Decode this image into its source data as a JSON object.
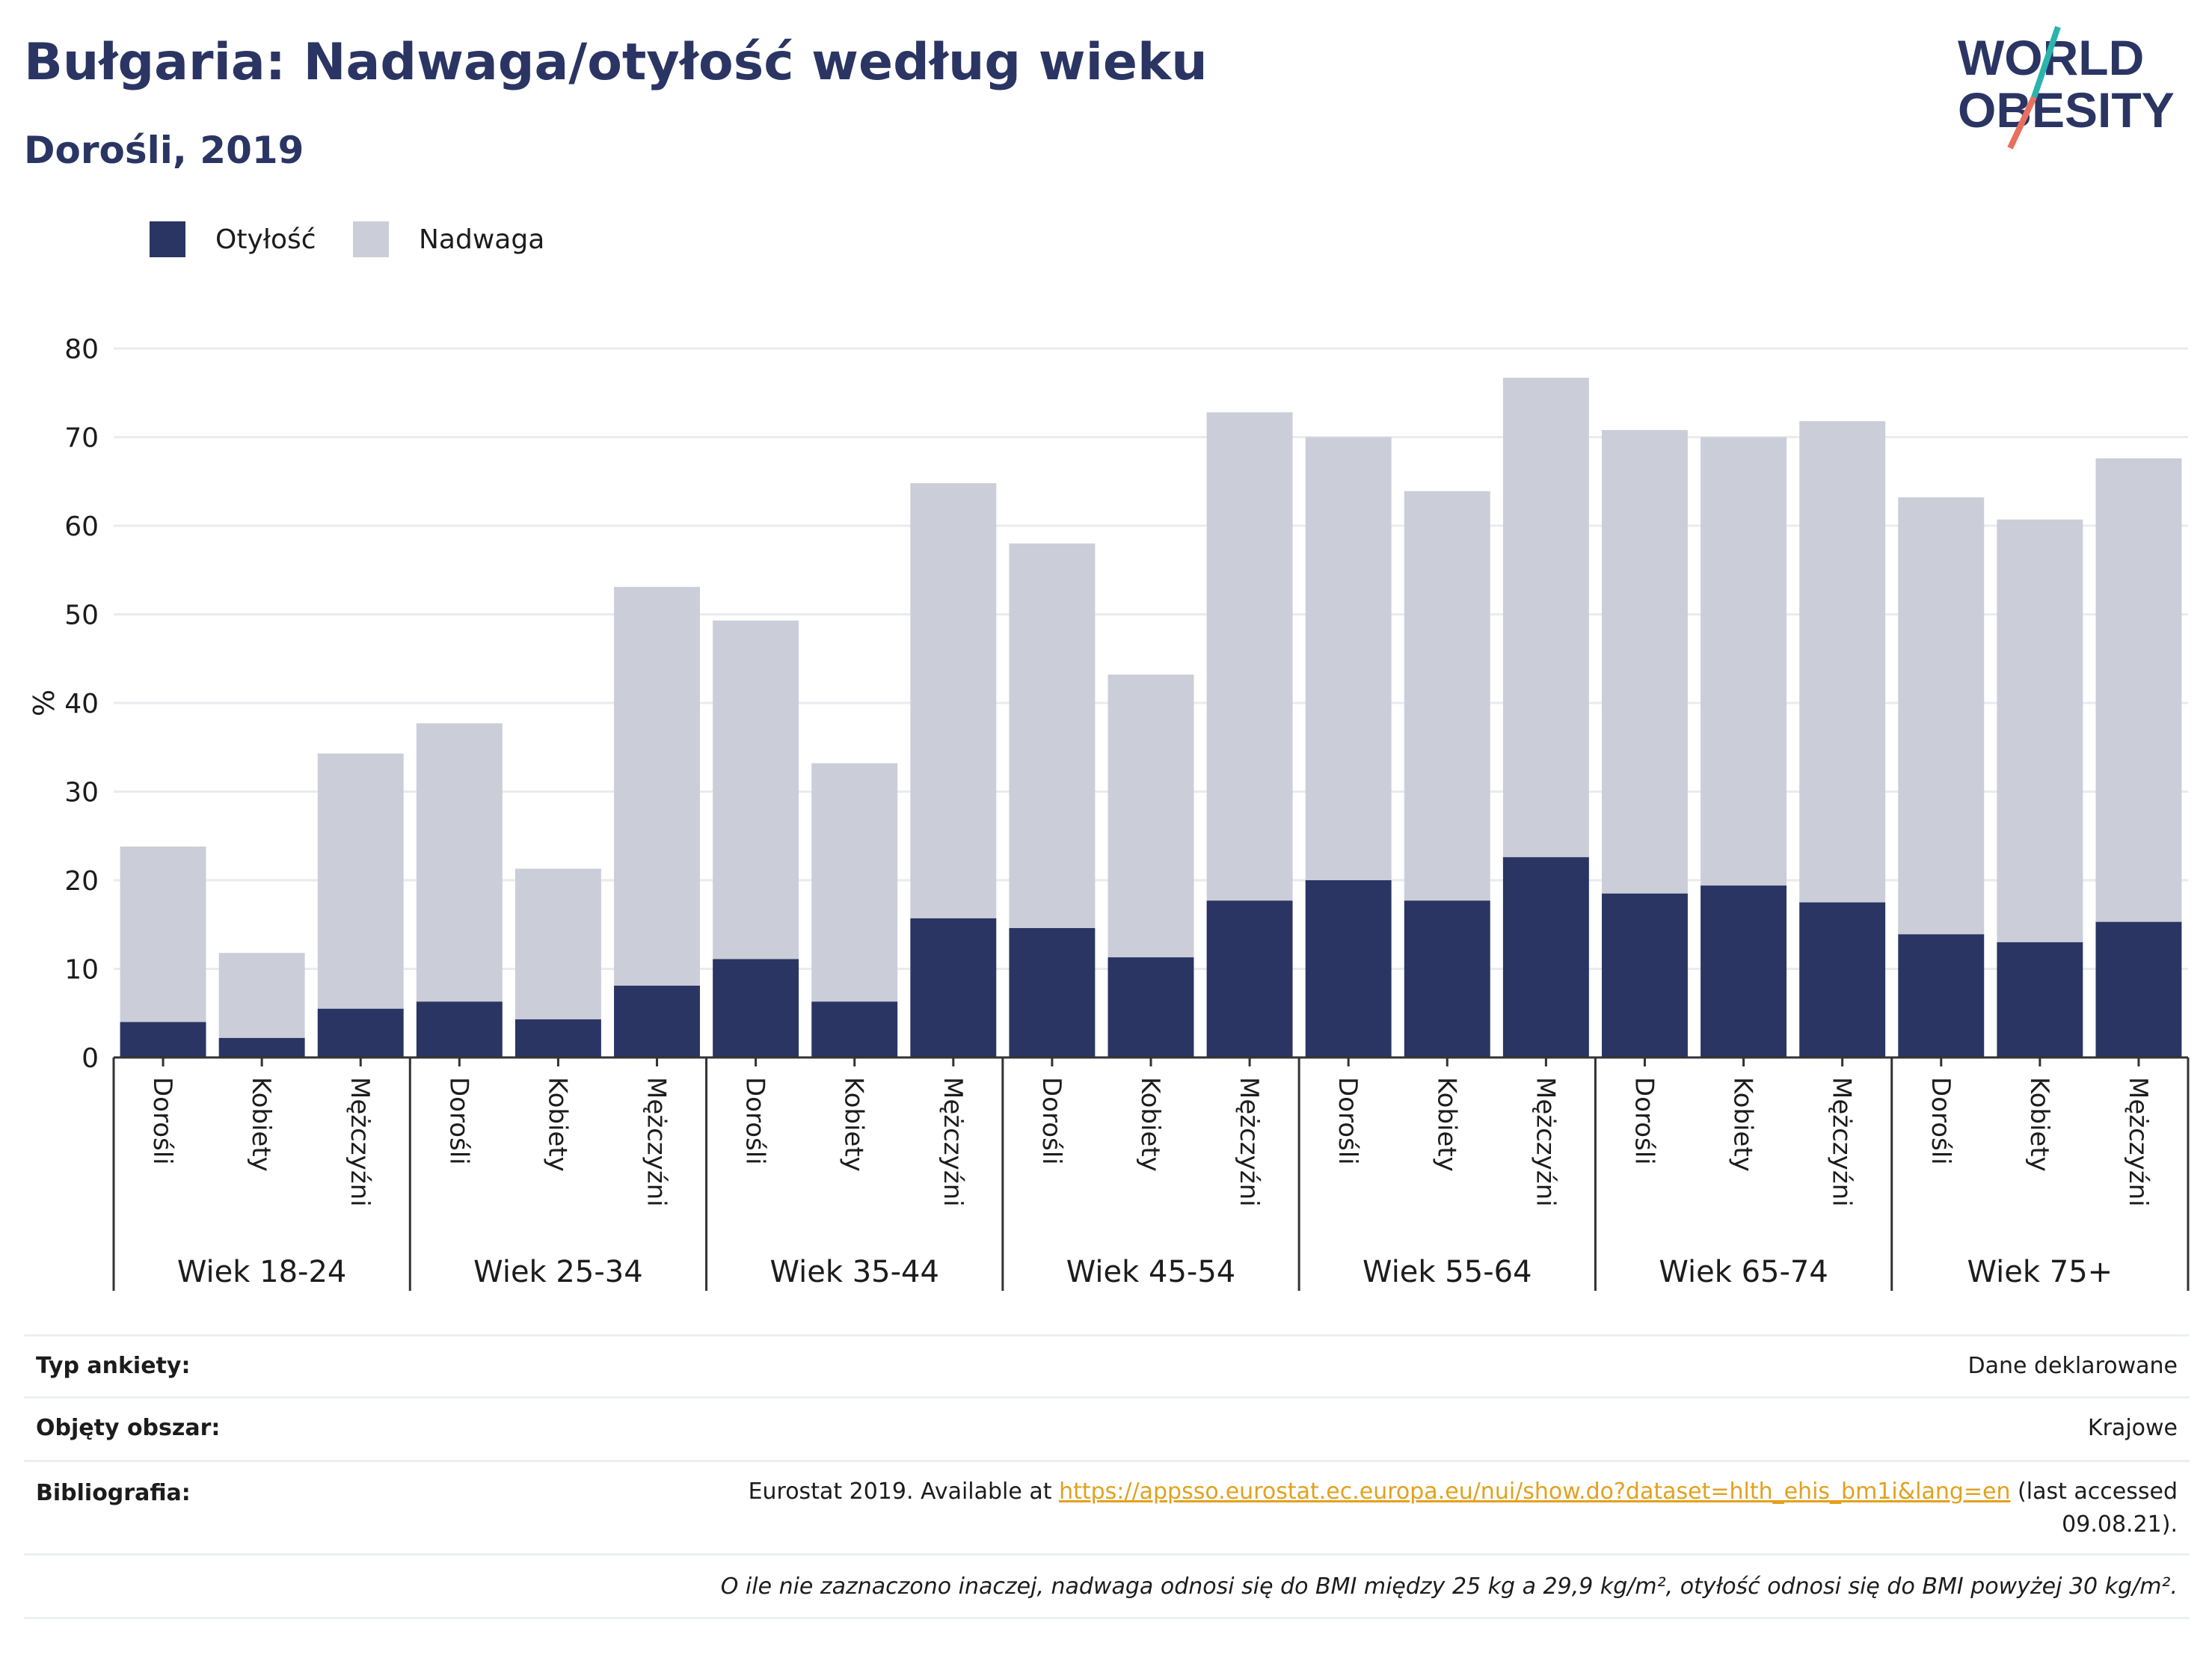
{
  "header": {
    "title": "Bułgaria: Nadwaga/otyłość według wieku",
    "subtitle": "Dorośli, 2019"
  },
  "logo": {
    "line1": "WORLD",
    "line2": "OBESITY"
  },
  "colors": {
    "obesity": "#2a3563",
    "overweight": "#cbcdd8",
    "title": "#2a3563",
    "link": "#e2a11e",
    "logo_teal": "#2bb3ad",
    "logo_coral": "#e8705f"
  },
  "chart_data": {
    "type": "bar",
    "stacked": true,
    "ylabel": "%",
    "ylim": [
      0,
      80
    ],
    "yticks": [
      0,
      10,
      20,
      30,
      40,
      50,
      60,
      70,
      80
    ],
    "grid": true,
    "legend_position": "top-left",
    "groups": [
      "Wiek 18-24",
      "Wiek 25-34",
      "Wiek 35-44",
      "Wiek 45-54",
      "Wiek 55-64",
      "Wiek 65-74",
      "Wiek 75+"
    ],
    "subcategories": [
      "Dorośli",
      "Kobiety",
      "Mężczyźni"
    ],
    "series": [
      {
        "name": "Otyłość",
        "values": [
          4.0,
          2.2,
          5.5,
          6.3,
          4.3,
          8.1,
          11.1,
          6.3,
          15.7,
          14.6,
          11.3,
          17.7,
          20.0,
          17.7,
          22.6,
          18.5,
          19.4,
          17.5,
          13.9,
          13.0,
          15.3
        ]
      },
      {
        "name": "Nadwaga",
        "values": [
          19.8,
          9.6,
          28.8,
          31.4,
          17.0,
          45.0,
          38.2,
          26.9,
          49.1,
          43.4,
          31.9,
          55.1,
          50.0,
          46.2,
          54.1,
          52.3,
          50.6,
          54.3,
          49.3,
          47.7,
          52.3
        ]
      }
    ]
  },
  "info": {
    "survey_label": "Typ ankiety:",
    "survey_value": "Dane deklarowane",
    "area_label": "Objęty obszar:",
    "area_value": "Krajowe",
    "bib_label": "Bibliografia:",
    "bib_prefix": "Eurostat 2019. Available at",
    "bib_link": "https://appsso.eurostat.ec.europa.eu/nui/show.do?dataset=hlth_ehis_bm1i&lang=en",
    "bib_suffix": "(last accessed",
    "bib_date": "09.08.21).",
    "note": "O ile nie zaznaczono inaczej, nadwaga odnosi się do BMI między 25 kg a 29,9 kg/m², otyłość odnosi się do BMI powyżej 30 kg/m²."
  }
}
